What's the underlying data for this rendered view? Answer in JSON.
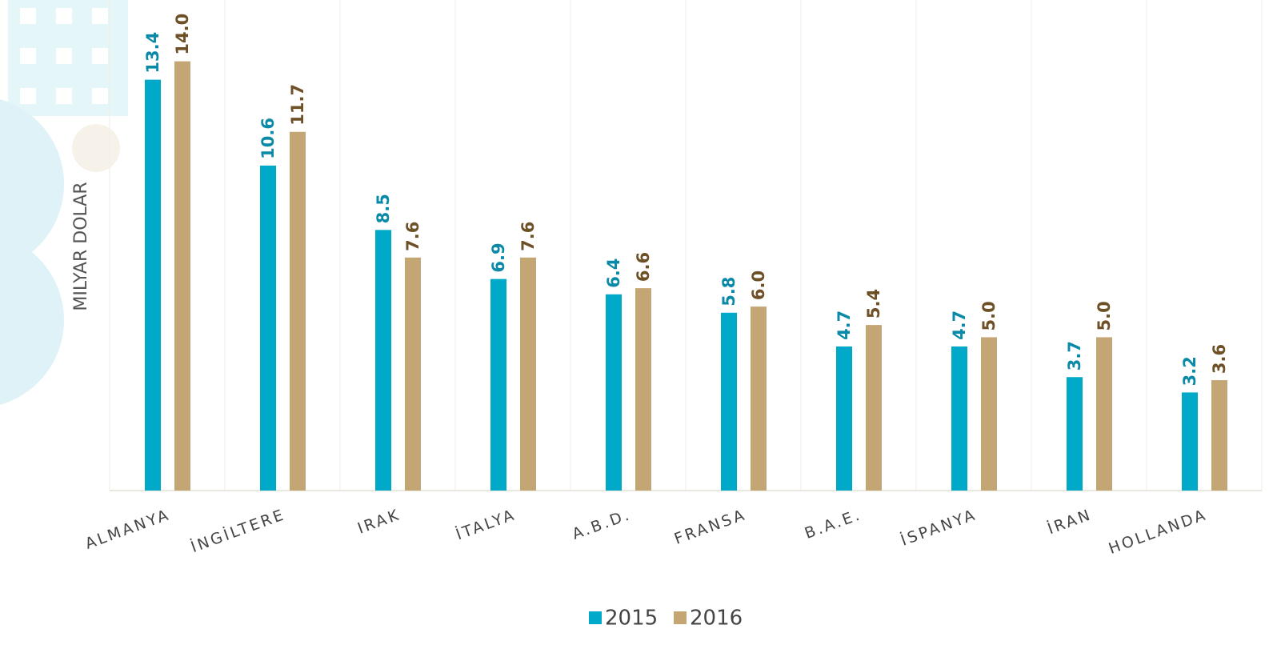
{
  "chart_data": {
    "type": "bar",
    "y_label": "MILYAR DOLAR",
    "categories": [
      "ALMANYA",
      "İNGİLTERE",
      "IRAK",
      "İTALYA",
      "A.B.D.",
      "FRANSA",
      "B.A.E.",
      "İSPANYA",
      "İRAN",
      "HOLLANDA"
    ],
    "series": [
      {
        "name": "2015",
        "color": "#00a9c9",
        "label_color": "#0b8aa8",
        "values": [
          13.4,
          10.6,
          8.5,
          6.9,
          6.4,
          5.8,
          4.7,
          4.7,
          3.7,
          3.2
        ],
        "value_labels": [
          "13.4",
          "10.6",
          "8.5",
          "6.9",
          "6.4",
          "5.8",
          "4.7",
          "4.7",
          "3.7",
          "3.2"
        ]
      },
      {
        "name": "2016",
        "color": "#c4a574",
        "label_color": "#6e5026",
        "values": [
          14,
          11.7,
          7.6,
          7.6,
          6.6,
          6,
          5.4,
          5,
          5,
          3.6
        ],
        "value_labels": [
          "14.0",
          "11.7",
          "7.6",
          "7.6",
          "6.6",
          "6.0",
          "5.4",
          "5.0",
          "5.0",
          "3.6"
        ]
      }
    ],
    "ylim": [
      0,
      16
    ]
  }
}
